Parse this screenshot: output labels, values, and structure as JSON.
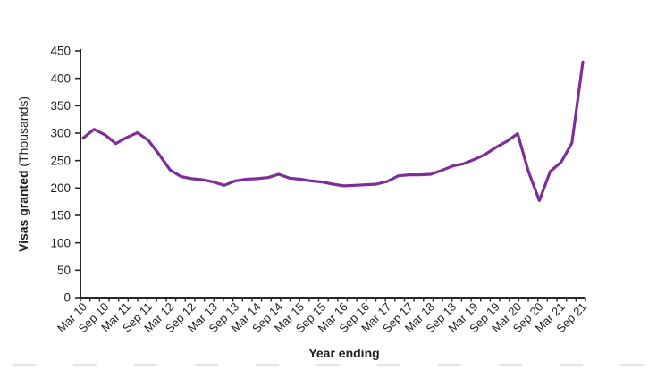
{
  "chart_data": {
    "type": "line",
    "title": "",
    "xlabel": "Year ending",
    "ylabel_bold": "Visas granted",
    "ylabel_unit": " (Thousands)",
    "ylim": [
      0,
      450
    ],
    "y_ticks": [
      0,
      50,
      100,
      150,
      200,
      250,
      300,
      350,
      400,
      450
    ],
    "x_tick_labels": [
      "Mar 10",
      "Sep 10",
      "Mar 11",
      "Sep 11",
      "Mar 12",
      "Sep 12",
      "Mar 13",
      "Sep 13",
      "Mar 14",
      "Sep 14",
      "Mar 15",
      "Sep 15",
      "Mar 16",
      "Sep 16",
      "Mar 17",
      "Sep 17",
      "Mar 18",
      "Sep 18",
      "Mar 19",
      "Sep 19",
      "Mar 20",
      "Sep 20",
      "Mar 21",
      "Sep 21"
    ],
    "x": [
      "Mar 10",
      "Jun 10",
      "Sep 10",
      "Dec 10",
      "Mar 11",
      "Jun 11",
      "Sep 11",
      "Dec 11",
      "Mar 12",
      "Jun 12",
      "Sep 12",
      "Dec 12",
      "Mar 13",
      "Jun 13",
      "Sep 13",
      "Dec 13",
      "Mar 14",
      "Jun 14",
      "Sep 14",
      "Dec 14",
      "Mar 15",
      "Jun 15",
      "Sep 15",
      "Dec 15",
      "Mar 16",
      "Jun 16",
      "Sep 16",
      "Dec 16",
      "Mar 17",
      "Jun 17",
      "Sep 17",
      "Dec 17",
      "Mar 18",
      "Jun 18",
      "Sep 18",
      "Dec 18",
      "Mar 19",
      "Jun 19",
      "Sep 19",
      "Dec 19",
      "Mar 20",
      "Jun 20",
      "Sep 20",
      "Dec 20",
      "Mar 21",
      "Jun 21",
      "Sep 21"
    ],
    "values": [
      291,
      307,
      297,
      281,
      292,
      301,
      287,
      261,
      233,
      221,
      217,
      215,
      211,
      205,
      213,
      216,
      217,
      219,
      225,
      218,
      216,
      213,
      211,
      207,
      204,
      205,
      206,
      207,
      212,
      222,
      224,
      224,
      225,
      232,
      240,
      244,
      252,
      261,
      274,
      285,
      299,
      230,
      177,
      230,
      247,
      282,
      430
    ],
    "line_color": "#7E2F97",
    "axis_color": "#262626",
    "grid": false,
    "legend_position": "none"
  }
}
